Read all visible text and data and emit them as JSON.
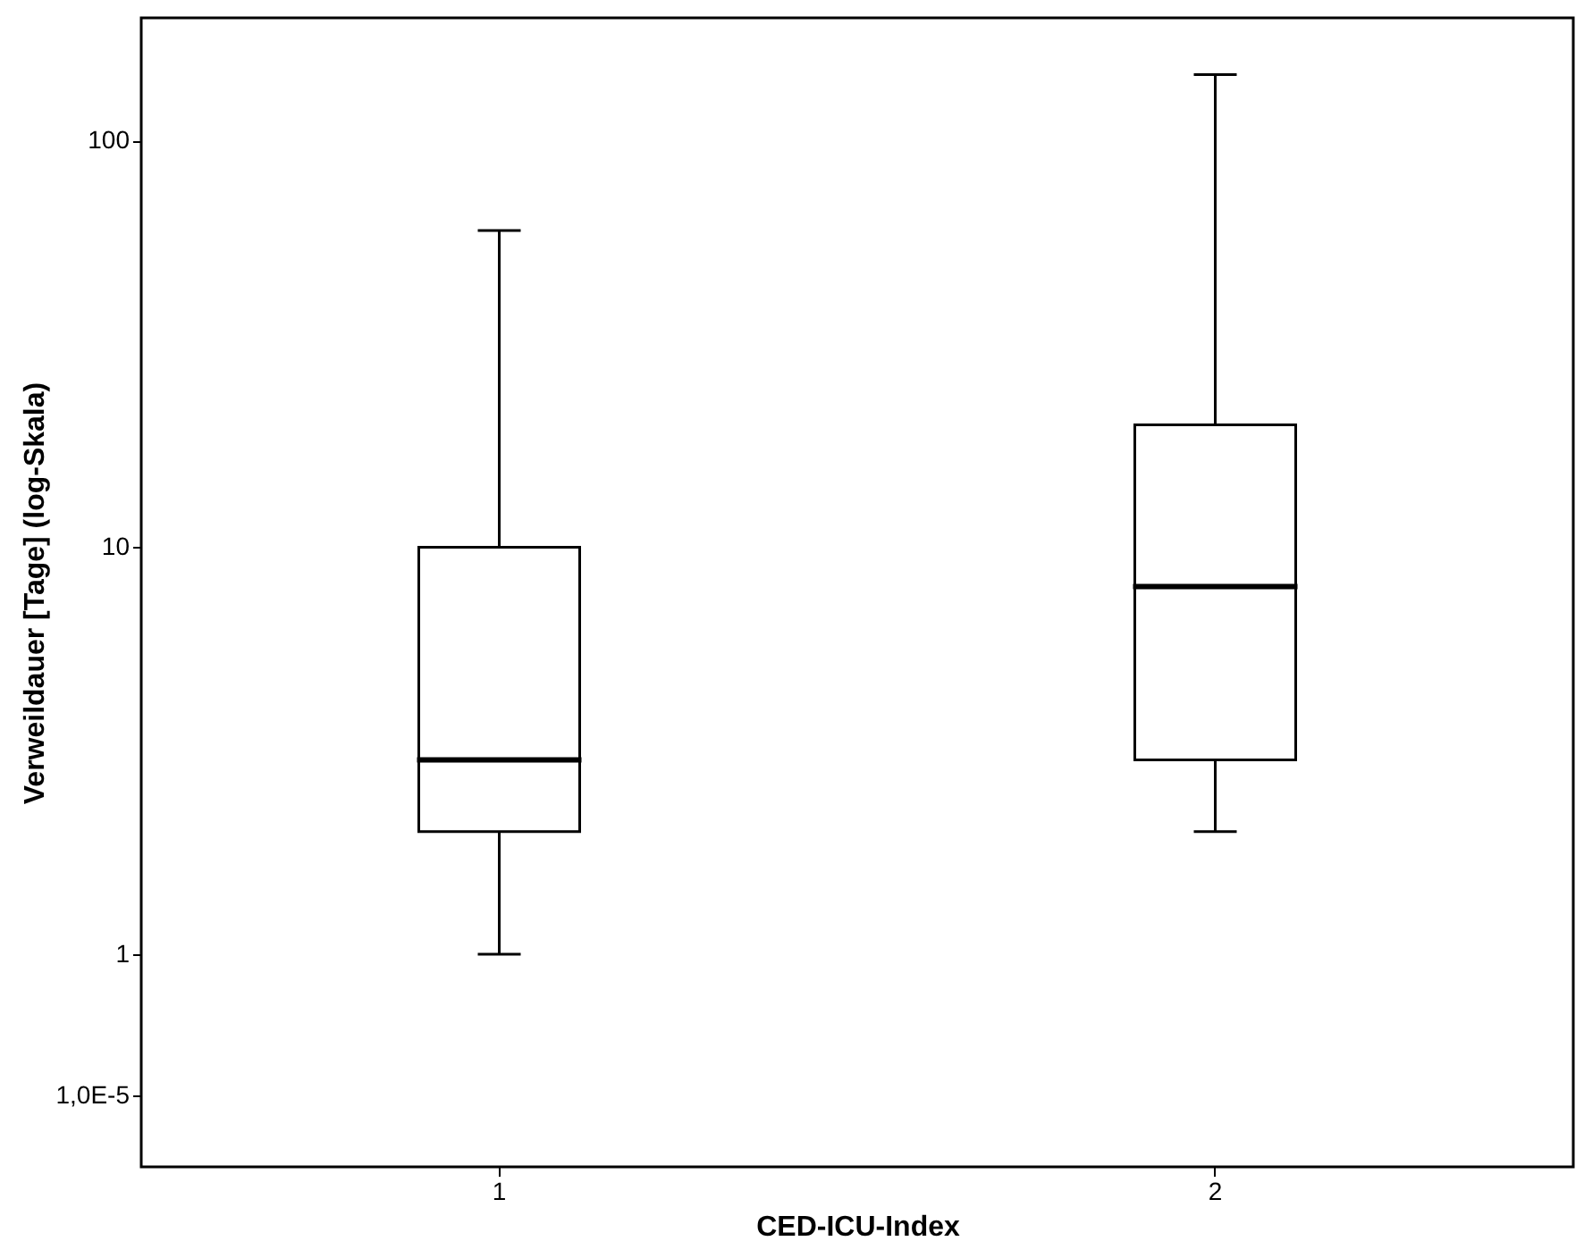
{
  "chart_data": {
    "type": "box",
    "xlabel": "CED-ICU-Index",
    "ylabel": "Verweildauer  [Tage]     (log-Skala)",
    "categories": [
      "1",
      "2"
    ],
    "boxes": [
      {
        "low": 1,
        "q1": 2,
        "median": 3,
        "q3": 10,
        "high": 60
      },
      {
        "low": 2,
        "q1": 3,
        "median": 8,
        "q3": 20,
        "high": 145
      }
    ],
    "color": "#ffffff",
    "log": true,
    "grid": false,
    "ylim": [
      0.3,
      200
    ],
    "yticks": [
      {
        "value": 0.45,
        "label": "1,0E-5"
      },
      1,
      10,
      100
    ]
  }
}
